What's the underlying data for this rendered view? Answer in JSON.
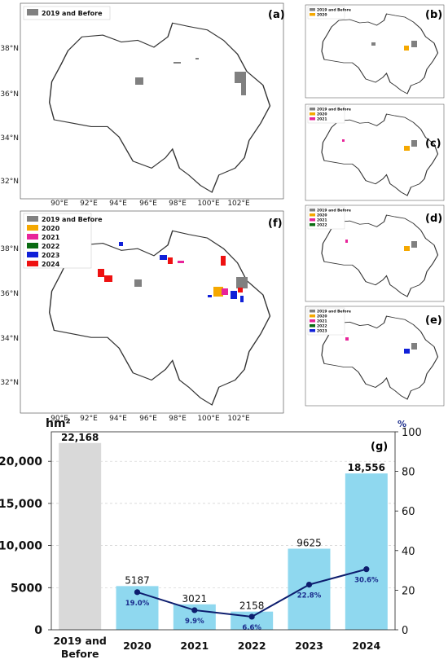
{
  "panels": {
    "a": {
      "label": "(a)",
      "legend": [
        "2019 and Before"
      ]
    },
    "b": {
      "label": "(b)",
      "legend": [
        "2019 and Before",
        "2020"
      ]
    },
    "c": {
      "label": "(c)",
      "legend": [
        "2019 and Before",
        "2020",
        "2021"
      ]
    },
    "d": {
      "label": "(d)",
      "legend": [
        "2019 and Before",
        "2020",
        "2021",
        "2022"
      ]
    },
    "e": {
      "label": "(e)",
      "legend": [
        "2019 and Before",
        "2020",
        "2021",
        "2022",
        "2023"
      ]
    },
    "f": {
      "label": "(f)",
      "legend": [
        "2019 and Before",
        "2020",
        "2021",
        "2022",
        "2023",
        "2024"
      ]
    }
  },
  "map_axes": {
    "lat_ticks": [
      "38°N",
      "36°N",
      "34°N",
      "32°N"
    ],
    "lon_ticks": [
      "90°E",
      "92°E",
      "94°E",
      "96°E",
      "98°E",
      "100°E",
      "102°E"
    ]
  },
  "colors": {
    "2019 and Before": "#808080",
    "2020": "#f5a800",
    "2021": "#e8249a",
    "2022": "#0a6b12",
    "2023": "#1020d8",
    "2024": "#ee1111",
    "bar_before": "#d9d9d9",
    "bar": "#8fd8ef",
    "line": "#0d1d6e",
    "boundary": "#333333"
  },
  "chart_data": {
    "type": "bar",
    "panel_label": "(g)",
    "left_unit": "hm²",
    "right_unit": "%",
    "categories": [
      "2019 and Before",
      "2020",
      "2021",
      "2022",
      "2023",
      "2024"
    ],
    "values": [
      22168,
      5187,
      3021,
      2158,
      9625,
      18556
    ],
    "value_labels": [
      "22,168",
      "5187",
      "3021",
      "2158",
      "9625",
      "18,556"
    ],
    "line_series": {
      "x": [
        "2020",
        "2021",
        "2022",
        "2023",
        "2024"
      ],
      "values": [
        19.0,
        9.9,
        6.6,
        22.8,
        30.6
      ],
      "labels": [
        "19.0%",
        "9.9%",
        "6.6%",
        "22.8%",
        "30.6%"
      ]
    },
    "left_ticks": [
      "0",
      "5000",
      "10,000",
      "15,000",
      "20,000"
    ],
    "left_tick_values": [
      0,
      5000,
      10000,
      15000,
      20000
    ],
    "right_ticks": [
      "0",
      "20",
      "40",
      "60",
      "80",
      "100"
    ],
    "right_tick_values": [
      0,
      20,
      40,
      60,
      80,
      100
    ],
    "ylim_left": [
      0,
      23500
    ],
    "ylim_right": [
      0,
      100
    ],
    "grid": "horizontal dashed"
  }
}
